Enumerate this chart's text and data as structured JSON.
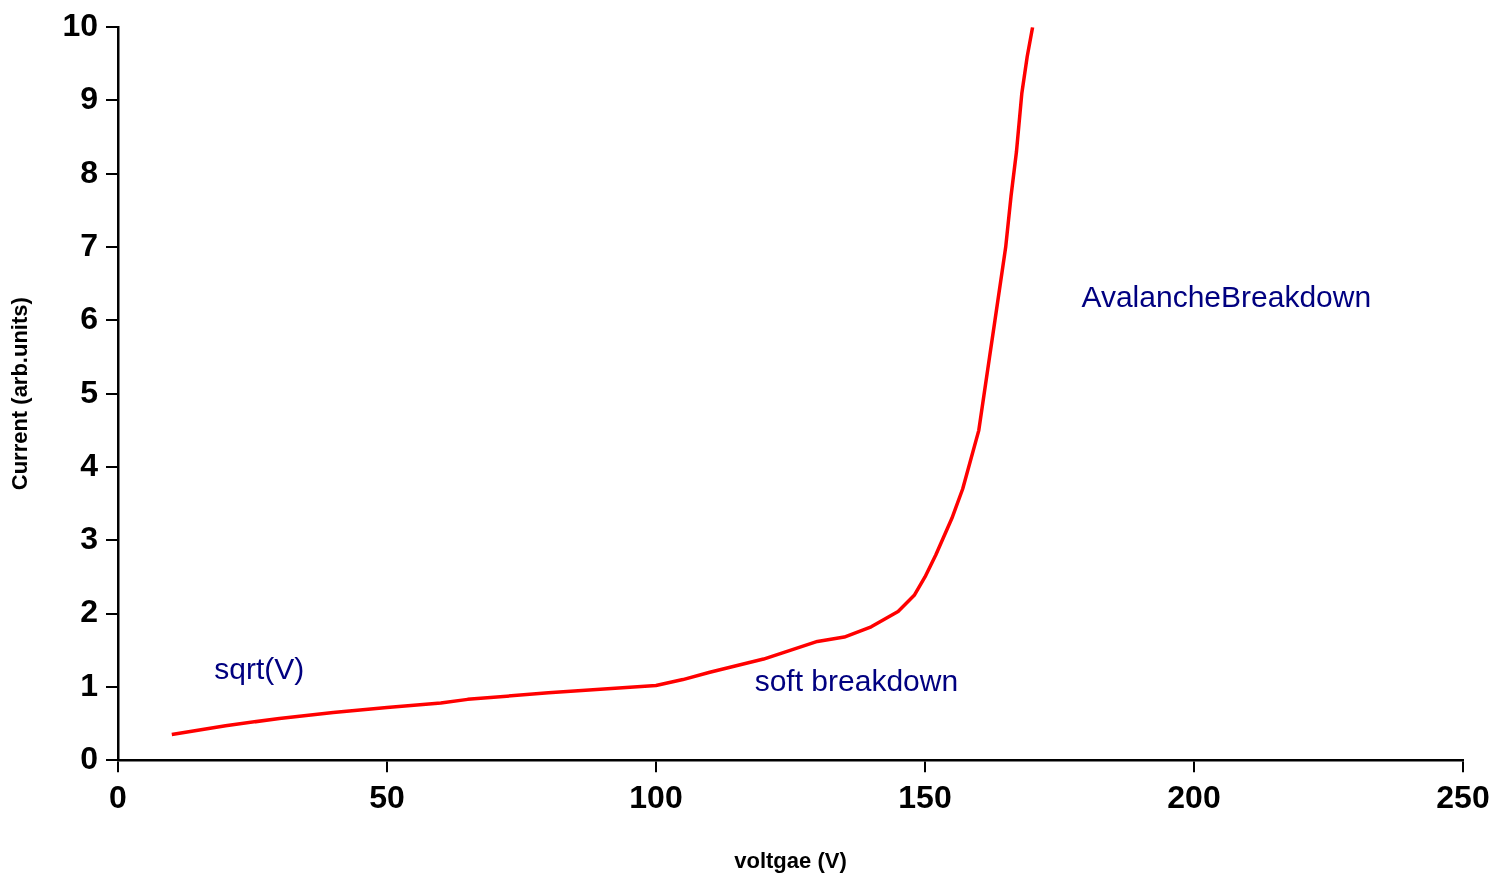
{
  "chart_data": {
    "type": "line",
    "xlabel": "voltgae (V)",
    "ylabel": "Current (arb.units)",
    "xlim": [
      0,
      250
    ],
    "xticks": [
      0,
      50,
      100,
      150,
      200,
      250
    ],
    "ylim": [
      0,
      10
    ],
    "yticks": [
      0,
      1,
      2,
      3,
      4,
      5,
      6,
      7,
      8,
      9,
      10
    ],
    "grid": false,
    "legend": false,
    "marker": "none",
    "line_style": "solid",
    "series": [
      {
        "color": "#ff0000",
        "x": [
          10,
          20,
          30,
          40,
          50,
          60,
          65,
          80,
          100,
          105,
          110,
          120,
          130,
          135,
          140,
          145,
          148,
          150,
          152,
          155,
          157,
          160,
          162,
          163,
          165,
          166,
          167,
          168,
          169,
          170
        ],
        "values": [
          0.35,
          0.47,
          0.57,
          0.65,
          0.72,
          0.78,
          0.83,
          0.92,
          1.02,
          1.1,
          1.2,
          1.38,
          1.62,
          1.68,
          1.82,
          2.03,
          2.25,
          2.5,
          2.8,
          3.3,
          3.7,
          4.5,
          5.5,
          6.0,
          7.0,
          7.7,
          8.3,
          9.1,
          9.6,
          10
        ]
      }
    ],
    "annotations": [
      "sqrt(V)",
      "soft breakdown",
      "AvalancheBreakdown"
    ]
  }
}
